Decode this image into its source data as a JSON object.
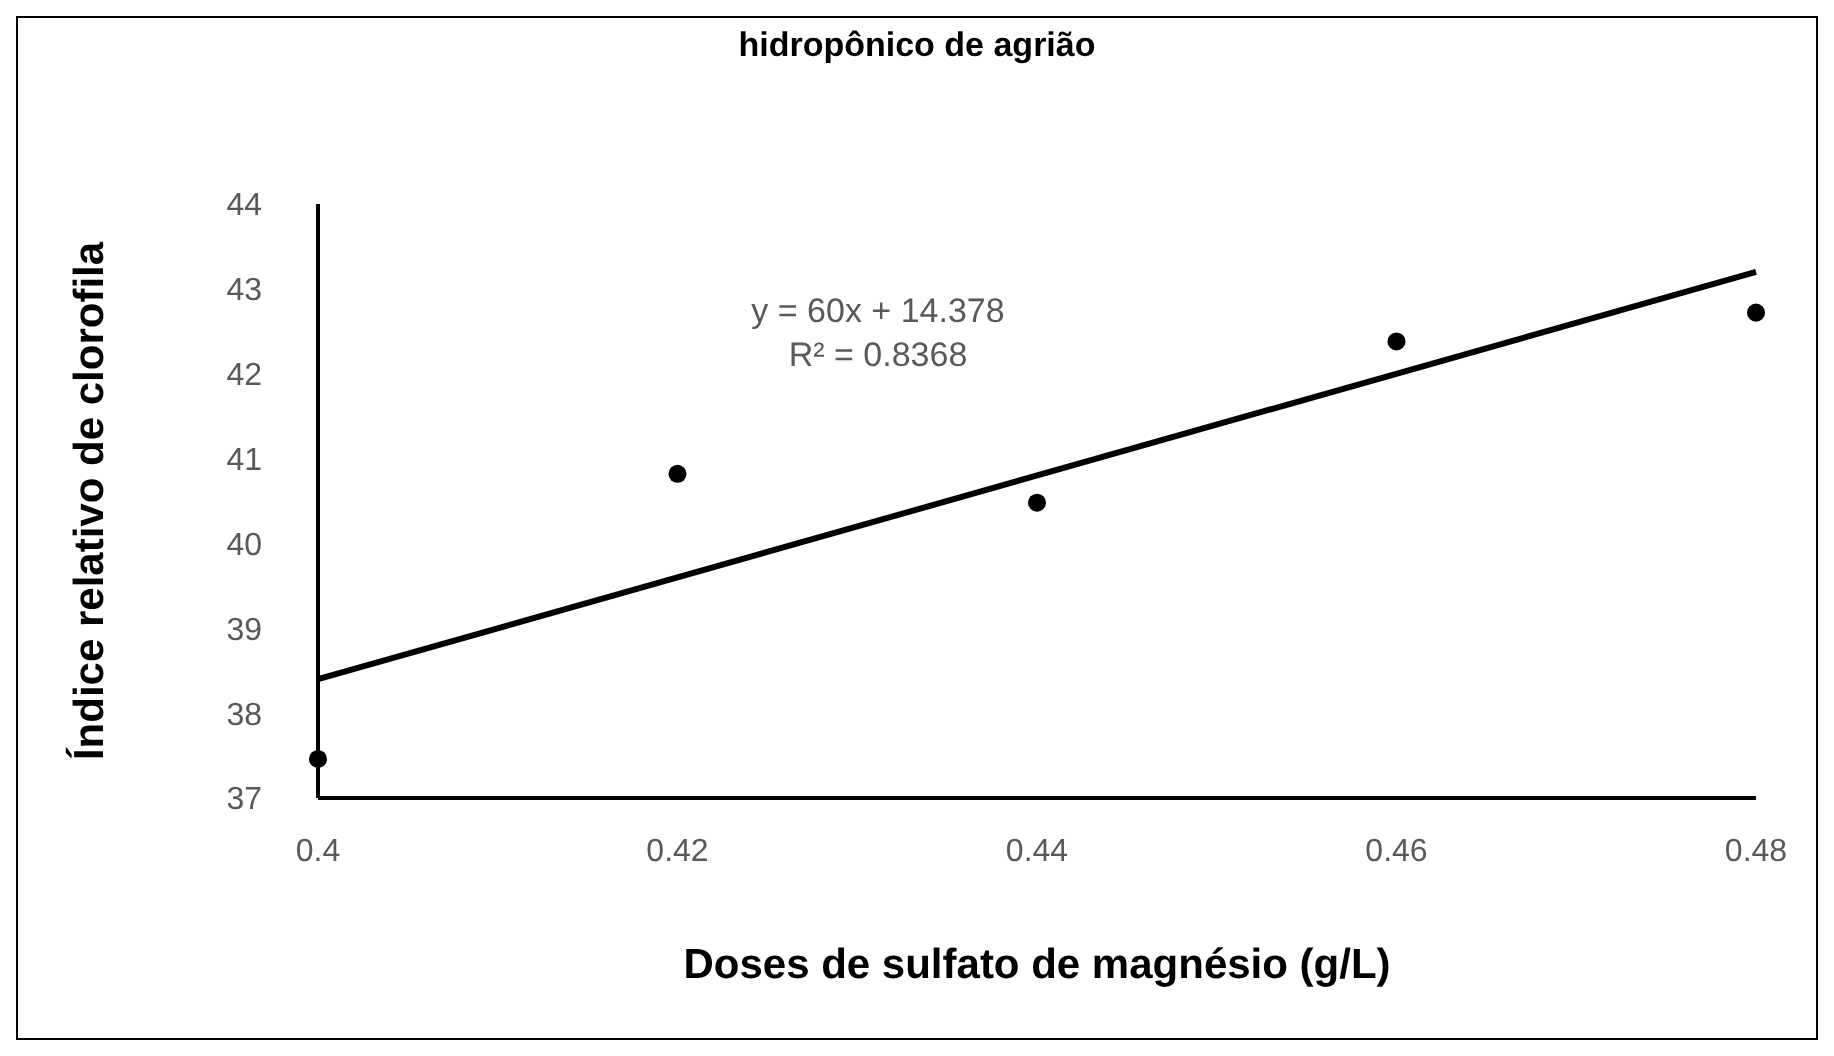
{
  "chart_data": {
    "type": "scatter",
    "title": "hidropônico de agrião",
    "xlabel": "Doses de sulfato de magnésio (g/L)",
    "ylabel": "Índice relativo de clorofila",
    "series": [
      {
        "color": "#000000",
        "x": [
          0.4,
          0.42,
          0.44,
          0.46,
          0.48
        ],
        "values": [
          37.46,
          40.82,
          40.48,
          42.38,
          42.72
        ],
        "marker": "circle"
      },
      {
        "type": "line",
        "color": "#000000",
        "x": [
          0.4,
          0.48
        ],
        "values": [
          38.4,
          43.2
        ],
        "line_style": "solid"
      }
    ],
    "annotations": [
      "y = 60x + 14.378",
      "R² = 0.8368"
    ],
    "xlim": [
      0.4,
      0.48
    ],
    "xticks": [
      0.4,
      0.42,
      0.44,
      0.46,
      0.48
    ],
    "ylim": [
      37,
      44
    ],
    "yticks": [
      37,
      38,
      39,
      40,
      41,
      42,
      43,
      44
    ]
  }
}
